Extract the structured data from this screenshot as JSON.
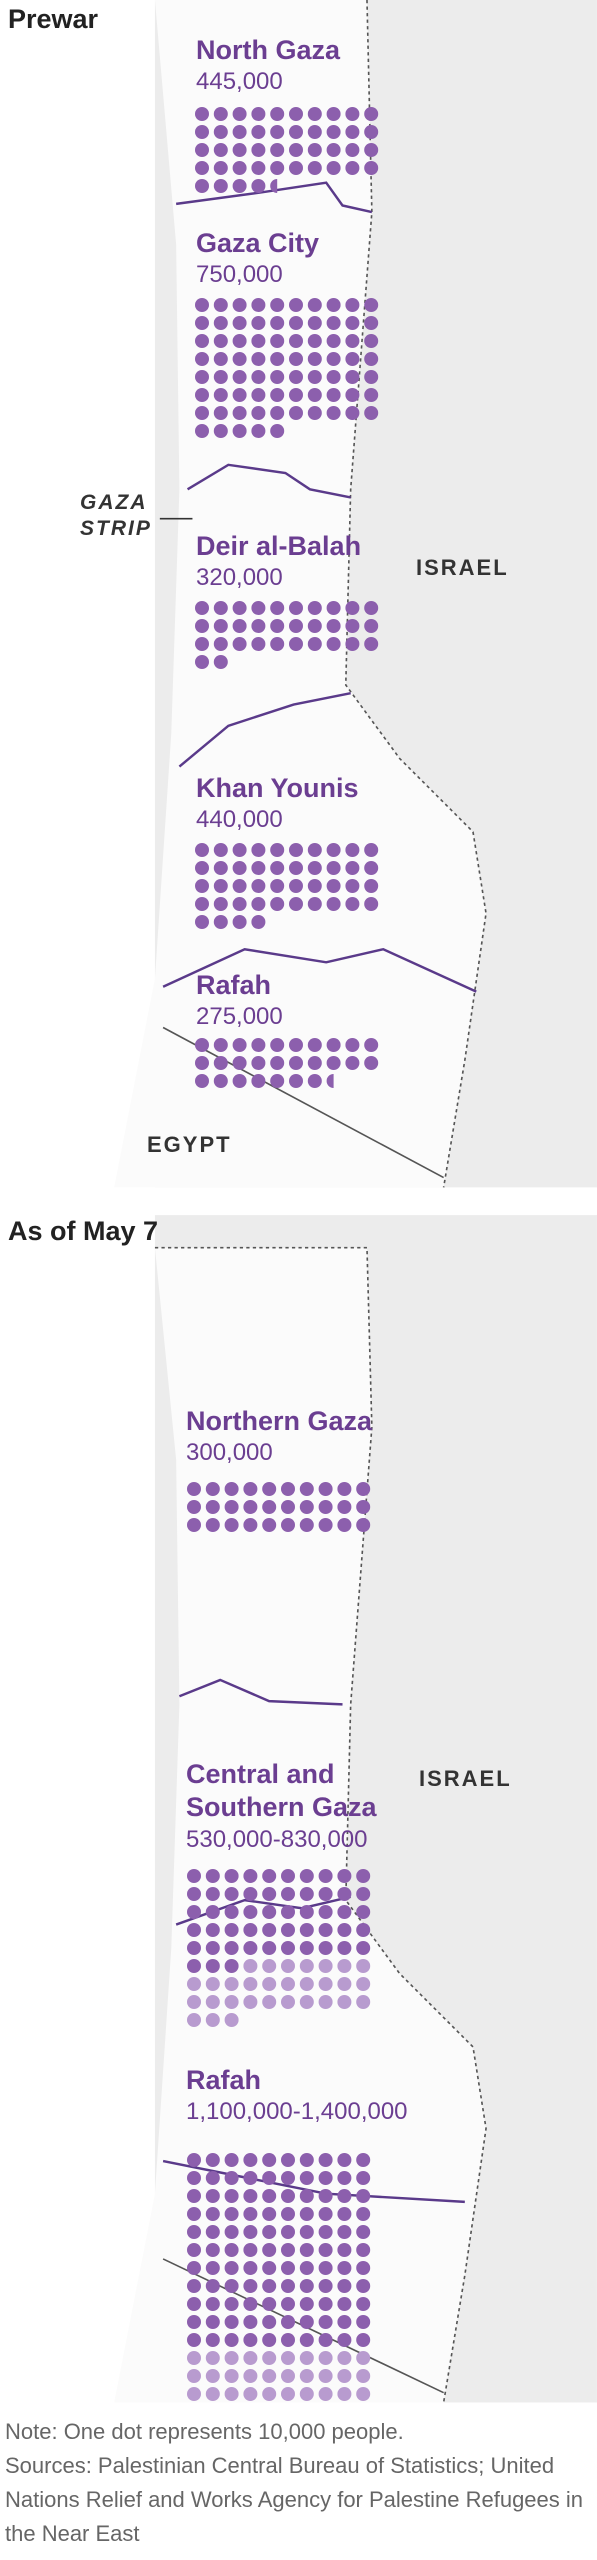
{
  "panels": [
    {
      "title": "Prewar",
      "labels": [
        "GAZA STRIP",
        "ISRAEL",
        "EGYPT"
      ],
      "regions": [
        {
          "name": "North Gaza",
          "population": 445000,
          "population_label": "445,000"
        },
        {
          "name": "Gaza City",
          "population": 750000,
          "population_label": "750,000"
        },
        {
          "name": "Deir al-Balah",
          "population": 320000,
          "population_label": "320,000"
        },
        {
          "name": "Khan Younis",
          "population": 440000,
          "population_label": "440,000"
        },
        {
          "name": "Rafah",
          "population": 275000,
          "population_label": "275,000"
        }
      ]
    },
    {
      "title": "As of May 7",
      "labels": [
        "ISRAEL"
      ],
      "regions": [
        {
          "name": "Northern Gaza",
          "population": 300000,
          "population_label": "300,000"
        },
        {
          "name": "Central and Southern Gaza",
          "population": [
            530000,
            830000
          ],
          "population_label": "530,000-830,000"
        },
        {
          "name": "Rafah",
          "population": [
            1100000,
            1400000
          ],
          "population_label": "1,100,000-1,400,000"
        }
      ]
    }
  ],
  "dot_value": 10000,
  "note": "Note: One dot represents 10,000 people.",
  "sources": "Sources: Palestinian Central Bureau of Statistics; United Nations Relief and Works Agency for Palestine Refugees in the Near East"
}
